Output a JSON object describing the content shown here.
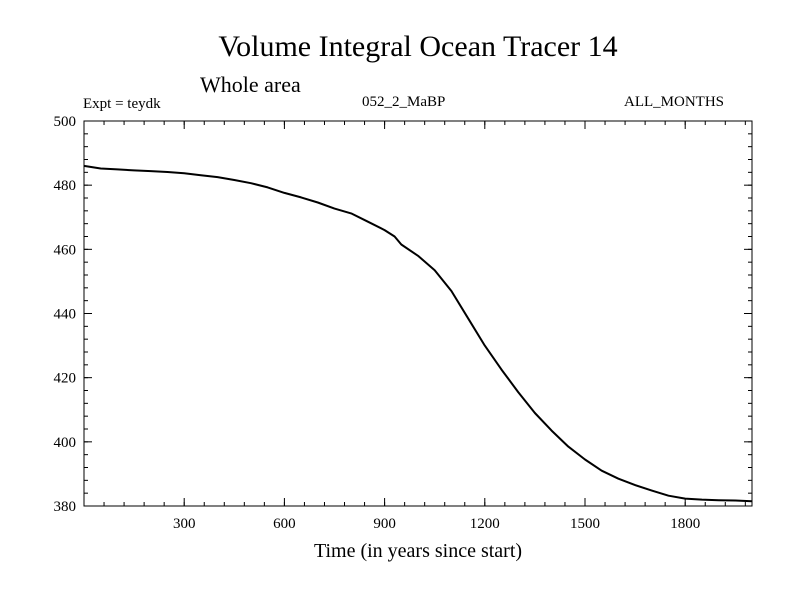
{
  "header": {
    "title": "Volume Integral Ocean Tracer 14",
    "subtitle": "Whole area",
    "experiment": "Expt = teydk",
    "period": "052_2_MaBP",
    "months": "ALL_MONTHS"
  },
  "chart_data": {
    "type": "line",
    "title": "Volume Integral Ocean Tracer 14",
    "subtitle": "Whole area",
    "xlabel": "Time (in years since start)",
    "ylabel": "",
    "xlim": [
      0,
      2000
    ],
    "ylim": [
      380,
      500
    ],
    "xticks": [
      300,
      600,
      900,
      1200,
      1500,
      1800
    ],
    "yticks": [
      380,
      400,
      420,
      440,
      460,
      480,
      500
    ],
    "grid": false,
    "series": [
      {
        "x": [
          0,
          50,
          100,
          150,
          200,
          250,
          300,
          350,
          400,
          450,
          500,
          550,
          600,
          650,
          700,
          750,
          800,
          850,
          900,
          930,
          950,
          1000,
          1050,
          1100,
          1150,
          1200,
          1250,
          1300,
          1350,
          1400,
          1450,
          1500,
          1550,
          1600,
          1650,
          1700,
          1750,
          1800,
          1850,
          1900,
          1950,
          2000
        ],
        "y": [
          486,
          485.2,
          484.9,
          484.6,
          484.4,
          484.1,
          483.7,
          483.1,
          482.5,
          481.6,
          480.6,
          479.3,
          477.6,
          476.2,
          474.6,
          472.7,
          471.2,
          468.6,
          466.0,
          464.0,
          461.5,
          458.0,
          453.5,
          447.0,
          438.5,
          430.0,
          422.5,
          415.5,
          409.0,
          403.5,
          398.5,
          394.5,
          391.0,
          388.5,
          386.5,
          384.8,
          383.2,
          382.3,
          382.0,
          381.8,
          381.7,
          381.5
        ],
        "color": "#000000"
      }
    ]
  }
}
